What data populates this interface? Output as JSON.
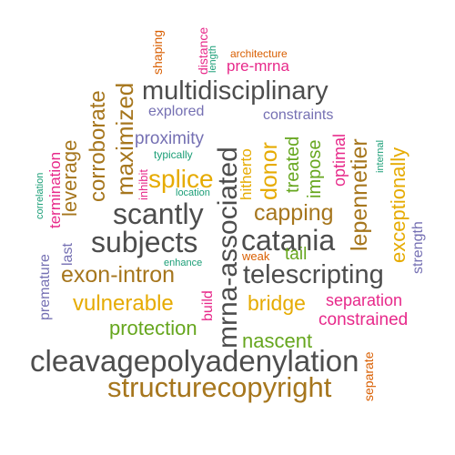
{
  "palette": {
    "gray": "#4d4d4d",
    "brown": "#a6761d",
    "gold": "#e6ab02",
    "magenta": "#e7298a",
    "purple": "#7570b3",
    "teal": "#1b9e77",
    "green": "#66a61e",
    "orange": "#d95f02"
  },
  "words": [
    {
      "id": "cleavagepolyadenylation",
      "text": "cleavagepolyadenylation",
      "color": "gray"
    },
    {
      "id": "structurecopyright",
      "text": "structurecopyright",
      "color": "brown"
    },
    {
      "id": "mrna-associated",
      "text": "mrna-associated",
      "color": "gray"
    },
    {
      "id": "multidisciplinary",
      "text": "multidisciplinary",
      "color": "gray"
    },
    {
      "id": "telescripting",
      "text": "telescripting",
      "color": "gray"
    },
    {
      "id": "catania",
      "text": "catania",
      "color": "gray"
    },
    {
      "id": "scantly",
      "text": "scantly",
      "color": "gray"
    },
    {
      "id": "subjects",
      "text": "subjects",
      "color": "gray"
    },
    {
      "id": "exon-intron",
      "text": "exon-intron",
      "color": "brown"
    },
    {
      "id": "vulnerable",
      "text": "vulnerable",
      "color": "gold"
    },
    {
      "id": "protection",
      "text": "protection",
      "color": "green"
    },
    {
      "id": "nascent",
      "text": "nascent",
      "color": "green"
    },
    {
      "id": "constrained",
      "text": "constrained",
      "color": "magenta"
    },
    {
      "id": "separation",
      "text": "separation",
      "color": "magenta"
    },
    {
      "id": "bridge",
      "text": "bridge",
      "color": "gold"
    },
    {
      "id": "capping",
      "text": "capping",
      "color": "brown"
    },
    {
      "id": "splice",
      "text": "splice",
      "color": "gold"
    },
    {
      "id": "proximity",
      "text": "proximity",
      "color": "purple"
    },
    {
      "id": "pre-mrna",
      "text": "pre-mrna",
      "color": "magenta"
    },
    {
      "id": "explored",
      "text": "explored",
      "color": "purple"
    },
    {
      "id": "constraints",
      "text": "constraints",
      "color": "purple"
    },
    {
      "id": "typically",
      "text": "typically",
      "color": "teal"
    },
    {
      "id": "architecture",
      "text": "architecture",
      "color": "orange"
    },
    {
      "id": "location",
      "text": "location",
      "color": "teal"
    },
    {
      "id": "enhance",
      "text": "enhance",
      "color": "teal"
    },
    {
      "id": "weak",
      "text": "weak",
      "color": "orange"
    },
    {
      "id": "tail",
      "text": "tail",
      "color": "green"
    },
    {
      "id": "corroborate",
      "text": "corroborate",
      "color": "brown"
    },
    {
      "id": "maximized",
      "text": "maximized",
      "color": "brown"
    },
    {
      "id": "leverage",
      "text": "leverage",
      "color": "brown"
    },
    {
      "id": "termination",
      "text": "termination",
      "color": "magenta"
    },
    {
      "id": "correlation",
      "text": "correlation",
      "color": "teal"
    },
    {
      "id": "premature",
      "text": "premature",
      "color": "purple"
    },
    {
      "id": "last",
      "text": "last",
      "color": "purple"
    },
    {
      "id": "inhibit",
      "text": "inhibit",
      "color": "magenta"
    },
    {
      "id": "shaping",
      "text": "shaping",
      "color": "orange"
    },
    {
      "id": "distance",
      "text": "distance",
      "color": "magenta"
    },
    {
      "id": "length",
      "text": "length",
      "color": "teal"
    },
    {
      "id": "hitherto",
      "text": "hitherto",
      "color": "gold"
    },
    {
      "id": "donor",
      "text": "donor",
      "color": "gold"
    },
    {
      "id": "treated",
      "text": "treated",
      "color": "green"
    },
    {
      "id": "impose",
      "text": "impose",
      "color": "green"
    },
    {
      "id": "optimal",
      "text": "optimal",
      "color": "magenta"
    },
    {
      "id": "lepennetier",
      "text": "lepennetier",
      "color": "brown"
    },
    {
      "id": "internal",
      "text": "internal",
      "color": "teal"
    },
    {
      "id": "exceptionally",
      "text": "exceptionally",
      "color": "gold"
    },
    {
      "id": "strength",
      "text": "strength",
      "color": "purple"
    },
    {
      "id": "build",
      "text": "build",
      "color": "magenta"
    },
    {
      "id": "separate",
      "text": "separate",
      "color": "orange"
    }
  ]
}
